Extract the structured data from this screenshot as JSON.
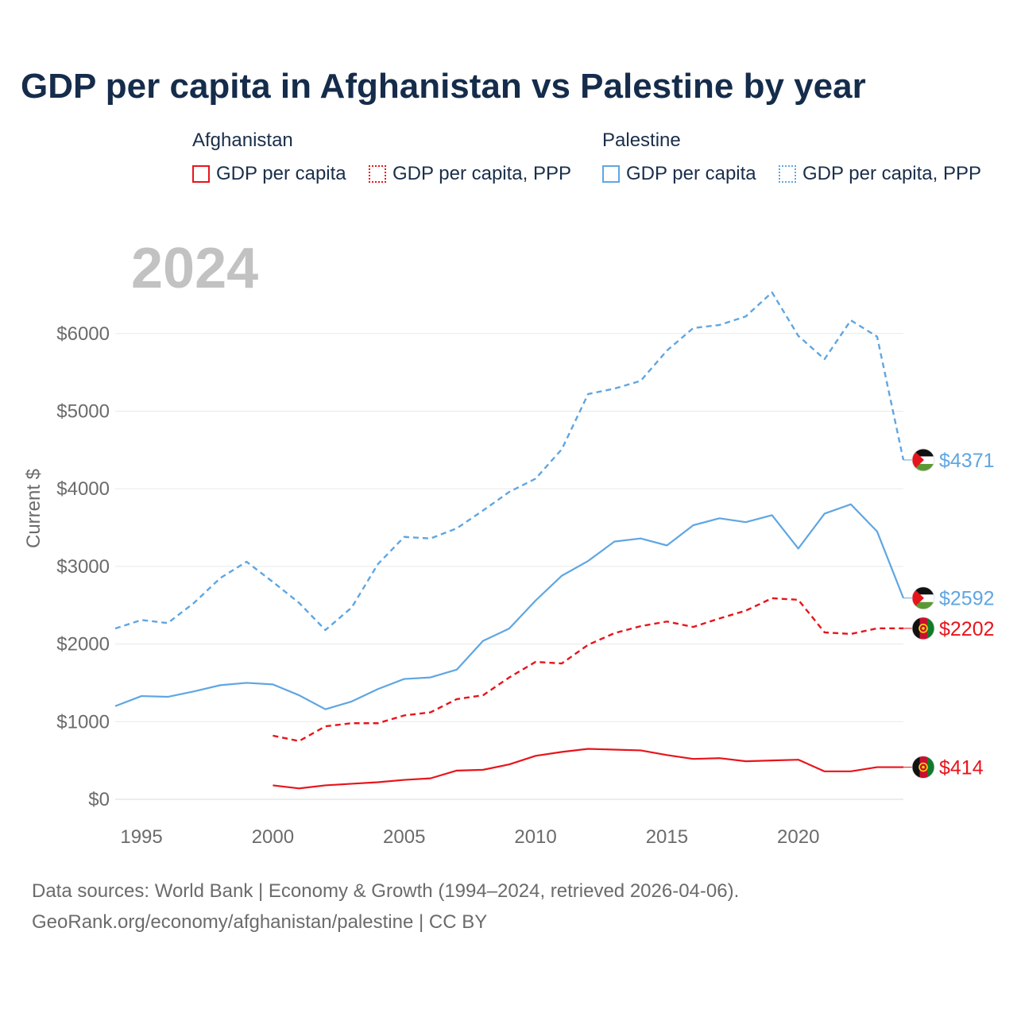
{
  "title": "GDP per capita in Afghanistan vs Palestine by year",
  "legend": {
    "afghanistan": {
      "title": "Afghanistan",
      "items": [
        "GDP per capita",
        "GDP per capita, PPP"
      ]
    },
    "palestine": {
      "title": "Palestine",
      "items": [
        "GDP per capita",
        "GDP per capita, PPP"
      ]
    }
  },
  "colors": {
    "afghanistan": "#e8141b",
    "palestine": "#5fa6e2"
  },
  "chart_data": {
    "type": "line",
    "year_label": "2024",
    "ylabel": "Current $",
    "xlim": [
      1994,
      2024
    ],
    "ylim": [
      0,
      6700
    ],
    "x_ticks": [
      1995,
      2000,
      2005,
      2010,
      2015,
      2020
    ],
    "x_tick_labels": [
      "1995",
      "2000",
      "2005",
      "2010",
      "2015",
      "2020"
    ],
    "y_ticks": [
      0,
      1000,
      2000,
      3000,
      4000,
      5000,
      6000
    ],
    "y_tick_labels": [
      "$0",
      "$1000",
      "$2000",
      "$3000",
      "$4000",
      "$5000",
      "$6000"
    ],
    "series": [
      {
        "name": "Palestine GDP per capita, PPP",
        "country": "palestine",
        "style": "dashed",
        "x": [
          1994,
          1995,
          1996,
          1997,
          1998,
          1999,
          2000,
          2001,
          2002,
          2003,
          2004,
          2005,
          2006,
          2007,
          2008,
          2009,
          2010,
          2011,
          2012,
          2013,
          2014,
          2015,
          2016,
          2017,
          2018,
          2019,
          2020,
          2021,
          2022,
          2023,
          2024
        ],
        "values": [
          2200,
          2310,
          2270,
          2530,
          2850,
          3060,
          2800,
          2530,
          2180,
          2470,
          3030,
          3380,
          3360,
          3490,
          3720,
          3960,
          4130,
          4510,
          5220,
          5290,
          5390,
          5780,
          6070,
          6110,
          6220,
          6530,
          5970,
          5670,
          6170,
          5960,
          4371
        ],
        "end_label": "$4371"
      },
      {
        "name": "Palestine GDP per capita",
        "country": "palestine",
        "style": "solid",
        "x": [
          1994,
          1995,
          1996,
          1997,
          1998,
          1999,
          2000,
          2001,
          2002,
          2003,
          2004,
          2005,
          2006,
          2007,
          2008,
          2009,
          2010,
          2011,
          2012,
          2013,
          2014,
          2015,
          2016,
          2017,
          2018,
          2019,
          2020,
          2021,
          2022,
          2023,
          2024
        ],
        "values": [
          1200,
          1330,
          1320,
          1390,
          1470,
          1500,
          1480,
          1340,
          1160,
          1260,
          1420,
          1550,
          1570,
          1670,
          2040,
          2200,
          2560,
          2880,
          3070,
          3320,
          3360,
          3270,
          3530,
          3620,
          3570,
          3660,
          3230,
          3680,
          3800,
          3450,
          2592
        ],
        "end_label": "$2592"
      },
      {
        "name": "Afghanistan GDP per capita, PPP",
        "country": "afghanistan",
        "style": "dashed",
        "x": [
          2000,
          2001,
          2002,
          2003,
          2004,
          2005,
          2006,
          2007,
          2008,
          2009,
          2010,
          2011,
          2012,
          2013,
          2014,
          2015,
          2016,
          2017,
          2018,
          2019,
          2020,
          2021,
          2022,
          2023,
          2024
        ],
        "values": [
          820,
          750,
          940,
          980,
          980,
          1080,
          1120,
          1290,
          1340,
          1570,
          1770,
          1750,
          1990,
          2140,
          2230,
          2290,
          2220,
          2330,
          2430,
          2590,
          2570,
          2150,
          2130,
          2202,
          2202
        ],
        "end_label": "$2202"
      },
      {
        "name": "Afghanistan GDP per capita",
        "country": "afghanistan",
        "style": "solid",
        "x": [
          2000,
          2001,
          2002,
          2003,
          2004,
          2005,
          2006,
          2007,
          2008,
          2009,
          2010,
          2011,
          2012,
          2013,
          2014,
          2015,
          2016,
          2017,
          2018,
          2019,
          2020,
          2021,
          2022,
          2023,
          2024
        ],
        "values": [
          180,
          140,
          180,
          200,
          220,
          250,
          270,
          370,
          380,
          450,
          560,
          610,
          650,
          640,
          630,
          570,
          520,
          530,
          490,
          500,
          510,
          360,
          360,
          414,
          414
        ],
        "end_label": "$414"
      }
    ]
  },
  "footer": {
    "line1": "Data sources: World Bank | Economy & Growth (1994–2024, retrieved 2026-04-06).",
    "line2": "GeoRank.org/economy/afghanistan/palestine | CC BY"
  }
}
